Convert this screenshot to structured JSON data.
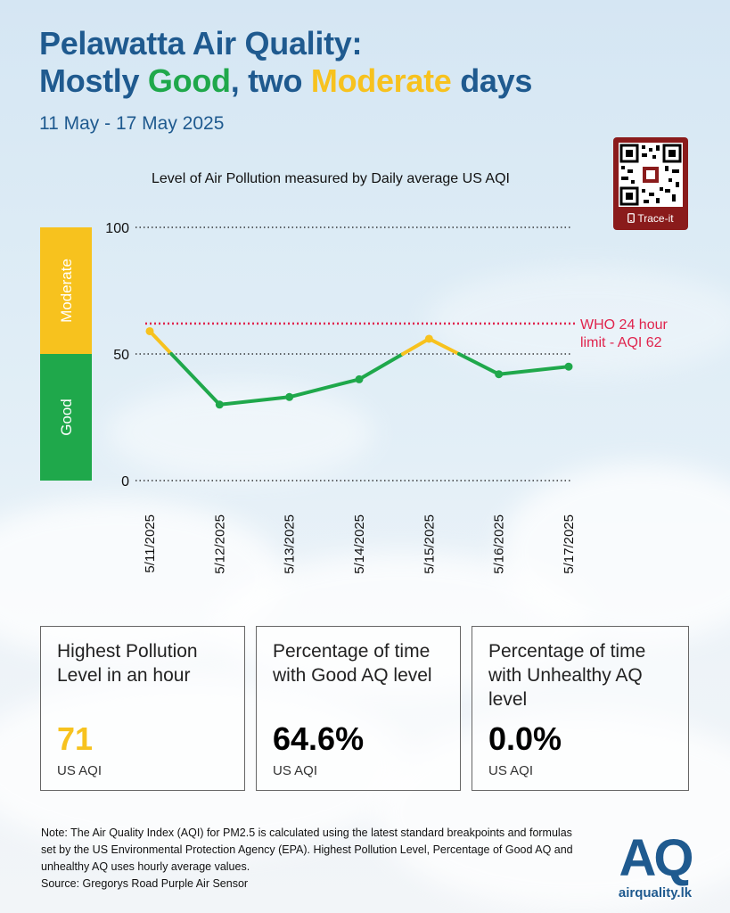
{
  "header": {
    "title_line1": "Pelawatta Air Quality:",
    "title_line2_pre": "Mostly ",
    "title_good": "Good",
    "title_line2_mid": ", two ",
    "title_moderate": "Moderate",
    "title_line2_post": " days",
    "date_range": "11 May - 17 May 2025"
  },
  "qr": {
    "label": "Trace-it",
    "icon": "phone-icon"
  },
  "colors": {
    "good": "#1fa84b",
    "moderate": "#f7c21e",
    "who_limit": "#e0244d",
    "title": "#1f5a8f"
  },
  "chart_data": {
    "type": "line",
    "title": "Level of Air Pollution measured by Daily average US AQI",
    "x": [
      "5/11/2025",
      "5/12/2025",
      "5/13/2025",
      "5/14/2025",
      "5/15/2025",
      "5/16/2025",
      "5/17/2025"
    ],
    "series": [
      {
        "values": [
          59,
          30,
          33,
          40,
          56,
          42,
          45
        ]
      }
    ],
    "ylim": [
      0,
      100
    ],
    "yticks": [
      0,
      50,
      100
    ],
    "bands": [
      {
        "label": "Good",
        "from": 0,
        "to": 50,
        "color": "#1fa84b"
      },
      {
        "label": "Moderate",
        "from": 50,
        "to": 100,
        "color": "#f7c21e"
      }
    ],
    "reference_line": {
      "value": 62,
      "label_line1": "WHO 24 hour",
      "label_line2": "limit - AQI 62"
    },
    "grid": "dotted at ticks"
  },
  "stats": [
    {
      "label": "Highest Pollution Level in an hour",
      "value": "71",
      "unit": "US AQI",
      "value_color": "#f7c21e"
    },
    {
      "label": "Percentage of time with Good AQ level",
      "value": "64.6%",
      "unit": "US AQI",
      "value_color": "#000000"
    },
    {
      "label": "Percentage of time with Unhealthy AQ level",
      "value": "0.0%",
      "unit": "US AQI",
      "value_color": "#000000"
    }
  ],
  "note": {
    "text": "Note: The Air Quality Index (AQI) for PM2.5 is calculated using the latest standard breakpoints and formulas set by the US Environmental Protection Agency (EPA). Highest Pollution Level, Percentage of Good AQ and unhealthy AQ uses hourly average values.",
    "source": "Source: Gregorys Road Purple Air Sensor"
  },
  "logo": {
    "mark": "AQ",
    "site": "airquality.lk"
  }
}
